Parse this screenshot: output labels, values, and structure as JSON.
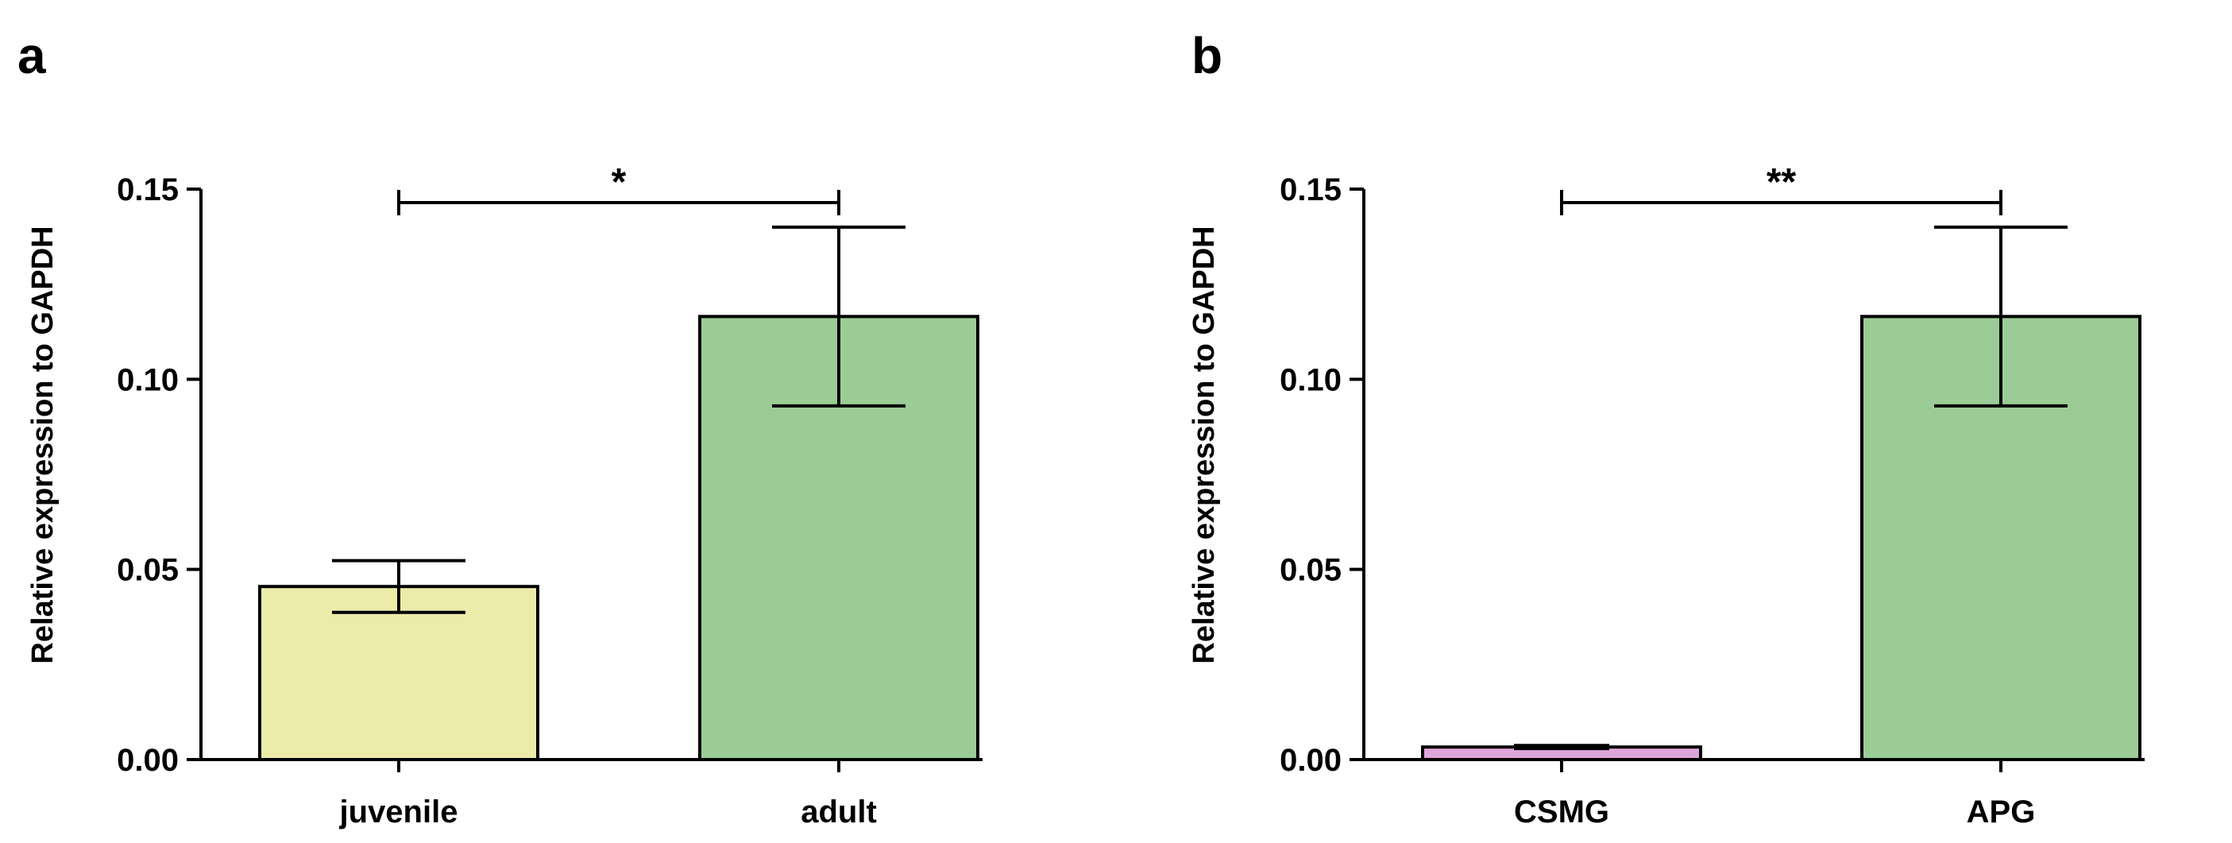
{
  "chart_data": [
    {
      "panel": "a",
      "type": "bar",
      "title": "",
      "xlabel": "",
      "ylabel": "Relative expression to GAPDH",
      "ylim": [
        0,
        0.15
      ],
      "yticks": [
        0.0,
        0.05,
        0.1,
        0.15
      ],
      "ytick_labels": [
        "0.00",
        "0.05",
        "0.10",
        "0.15"
      ],
      "categories": [
        "juvenile",
        "adult"
      ],
      "values": [
        0.0455,
        0.1165
      ],
      "errors": [
        0.0068,
        0.0235
      ],
      "colors": [
        "#ecebaa",
        "#9ccc95"
      ],
      "significance": {
        "from": "juvenile",
        "to": "adult",
        "label": "*"
      }
    },
    {
      "panel": "b",
      "type": "bar",
      "title": "",
      "xlabel": "",
      "ylabel": "Relative expression to GAPDH",
      "ylim": [
        0,
        0.15
      ],
      "yticks": [
        0.0,
        0.05,
        0.1,
        0.15
      ],
      "ytick_labels": [
        "0.00",
        "0.05",
        "0.10",
        "0.15"
      ],
      "categories": [
        "CSMG",
        "APG"
      ],
      "values": [
        0.0033,
        0.1165
      ],
      "errors": [
        0.0004,
        0.0235
      ],
      "colors": [
        "#dfa6dc",
        "#9ccc95"
      ],
      "significance": {
        "from": "CSMG",
        "to": "APG",
        "label": "**"
      }
    }
  ]
}
